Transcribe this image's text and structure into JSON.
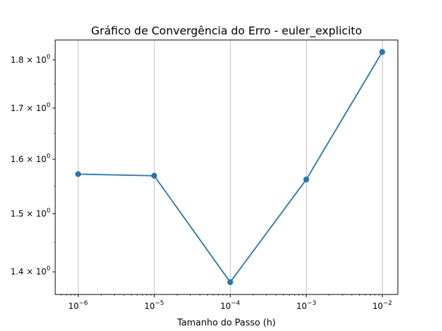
{
  "chart_data": {
    "type": "line",
    "title": "Gráfico de Convergência do Erro - euler_explicito",
    "xlabel": "Tamanho do Passo (h)",
    "ylabel": "",
    "x_scale": "log",
    "y_scale": "log",
    "x_ticks": [
      {
        "value": 1e-06,
        "base": "10",
        "exp": "−6"
      },
      {
        "value": 1e-05,
        "base": "10",
        "exp": "−5"
      },
      {
        "value": 0.0001,
        "base": "10",
        "exp": "−4"
      },
      {
        "value": 0.001,
        "base": "10",
        "exp": "−3"
      },
      {
        "value": 0.01,
        "base": "10",
        "exp": "−2"
      }
    ],
    "y_ticks": [
      {
        "value": 1.4,
        "mantissa": "1.4",
        "base": "10",
        "exp": "0"
      },
      {
        "value": 1.5,
        "mantissa": "1.5",
        "base": "10",
        "exp": "0"
      },
      {
        "value": 1.6,
        "mantissa": "1.6",
        "base": "10",
        "exp": "0"
      },
      {
        "value": 1.7,
        "mantissa": "1.7",
        "base": "10",
        "exp": "0"
      },
      {
        "value": 1.8,
        "mantissa": "1.8",
        "base": "10",
        "exp": "0"
      }
    ],
    "xlim": [
      5e-07,
      0.016
    ],
    "ylim": [
      1.363,
      1.843
    ],
    "grid": "vertical",
    "series": [
      {
        "x": [
          1e-06,
          1e-05,
          0.0001,
          0.001,
          0.01
        ],
        "y": [
          1.572,
          1.569,
          1.383,
          1.562,
          1.817
        ],
        "color": "#1f77b4",
        "marker": "circle"
      }
    ]
  }
}
